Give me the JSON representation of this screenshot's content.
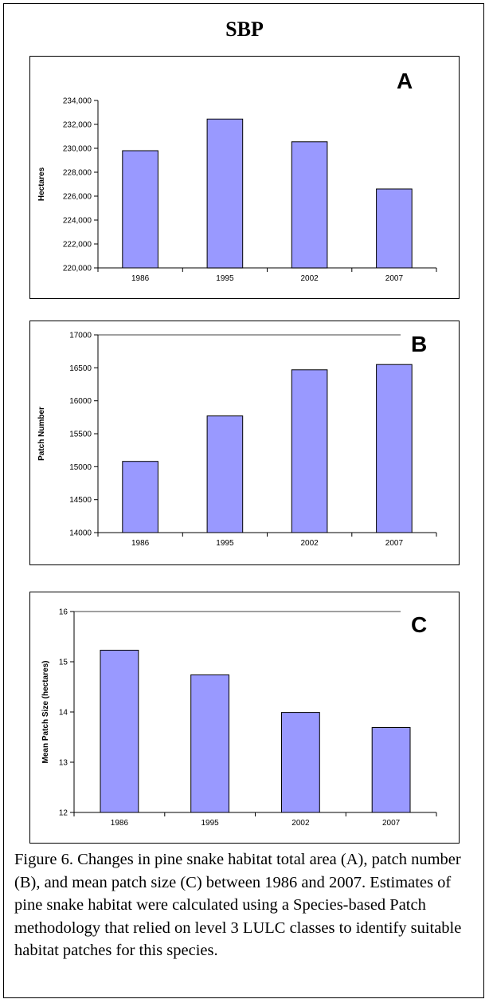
{
  "figure": {
    "title": "SBP",
    "caption": "Figure 6. Changes in pine snake habitat total area (A), patch number (B), and mean patch size (C) between 1986 and 2007.  Estimates of pine snake habitat were calculated using a Species-based Patch methodology that relied on level 3 LULC classes to identify suitable habitat patches for this species."
  },
  "colors": {
    "bar_fill": "#9999ff",
    "bar_stroke": "#000000",
    "axis": "#000000",
    "grid": "#000000"
  },
  "chart_data": [
    {
      "type": "bar",
      "panel": "A",
      "categories": [
        "1986",
        "1995",
        "2002",
        "2007"
      ],
      "values": [
        229800,
        232450,
        230550,
        226600
      ],
      "ylabel": "Hectares",
      "xlabel": "",
      "ylim": [
        220000,
        234000
      ],
      "ytick_values": [
        220000,
        222000,
        224000,
        226000,
        228000,
        230000,
        232000,
        234000
      ],
      "ytick_labels": [
        "220,000",
        "222,000",
        "224,000",
        "226,000",
        "228,000",
        "230,000",
        "232,000",
        "234,000"
      ],
      "grid": false
    },
    {
      "type": "bar",
      "panel": "B",
      "categories": [
        "1986",
        "1995",
        "2002",
        "2007"
      ],
      "values": [
        15080,
        15770,
        16470,
        16550
      ],
      "ylabel": "Patch Number",
      "xlabel": "",
      "ylim": [
        14000,
        17000
      ],
      "ytick_values": [
        14000,
        14500,
        15000,
        15500,
        16000,
        16500,
        17000
      ],
      "ytick_labels": [
        "14000",
        "14500",
        "15000",
        "15500",
        "16000",
        "16500",
        "17000"
      ],
      "grid": false
    },
    {
      "type": "bar",
      "panel": "C",
      "categories": [
        "1986",
        "1995",
        "2002",
        "2007"
      ],
      "values": [
        15.23,
        14.74,
        13.99,
        13.69
      ],
      "ylabel": "Mean Patch Size (hectares)",
      "xlabel": "",
      "ylim": [
        12,
        16
      ],
      "ytick_values": [
        12,
        13,
        14,
        15,
        16
      ],
      "ytick_labels": [
        "12",
        "13",
        "14",
        "15",
        "16"
      ],
      "grid": false
    }
  ]
}
